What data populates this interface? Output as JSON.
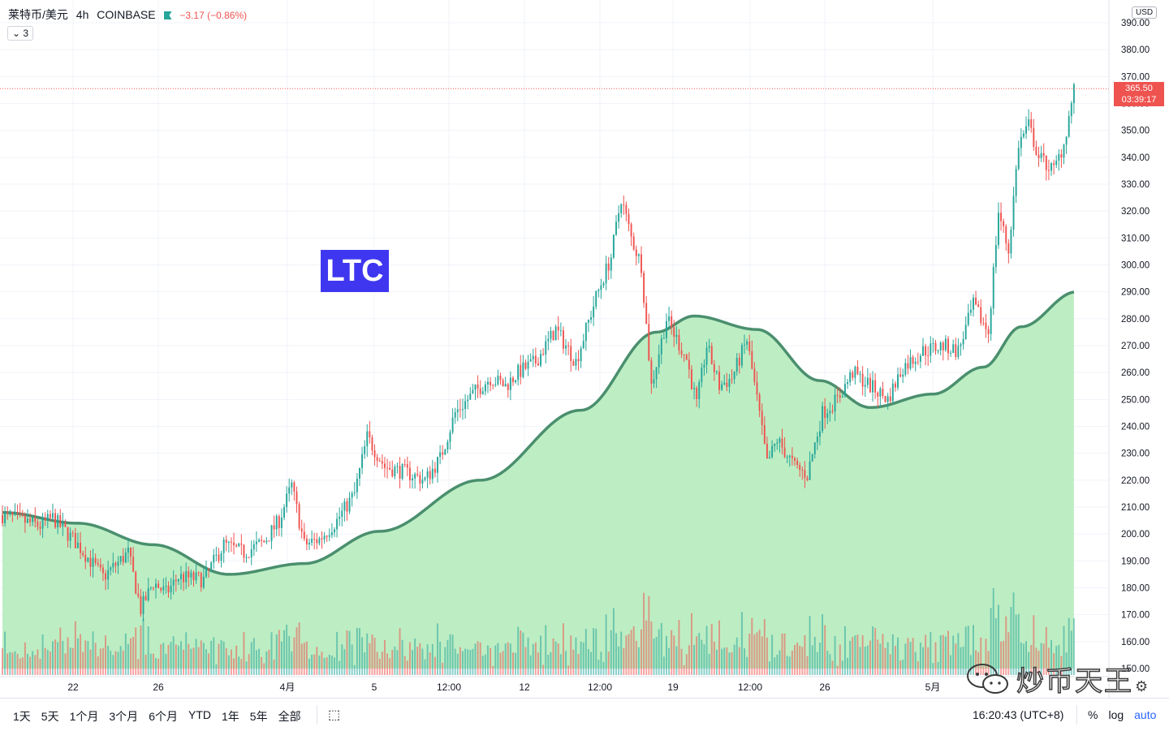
{
  "header": {
    "symbol": "莱特币/美元",
    "interval": "4h",
    "exchange": "COINBASE",
    "change": "−3.17 (−0.86%)",
    "indicator_count": "3"
  },
  "currency_button": "USD",
  "overlay_label": "LTC",
  "price_tag": {
    "price": "365.50",
    "countdown": "03:39:17"
  },
  "watermark_text": "炒币天王",
  "bottom_bar": {
    "ranges": [
      "1天",
      "5天",
      "1个月",
      "3个月",
      "6个月",
      "YTD",
      "1年",
      "5年",
      "全部"
    ],
    "time_readout": "16:20:43 (UTC+8)",
    "scale_buttons": {
      "percent": "%",
      "log": "log",
      "auto": "auto"
    }
  },
  "colors": {
    "up": "#26a69a",
    "down": "#ef5350",
    "band_fill": "#b9ecc0",
    "band_line": "#4a8f6e",
    "overlay_bg": "#3f37f0"
  },
  "chart_data": {
    "type": "candlestick",
    "yaxis": {
      "min": 150,
      "max": 390,
      "ticks": [
        "390.00",
        "380.00",
        "370.00",
        "360.00",
        "350.00",
        "340.00",
        "330.00",
        "320.00",
        "310.00",
        "300.00",
        "290.00",
        "280.00",
        "270.00",
        "260.00",
        "250.00",
        "240.00",
        "230.00",
        "220.00",
        "210.00",
        "200.00",
        "190.00",
        "180.00",
        "170.00",
        "160.00",
        "150.00"
      ]
    },
    "xaxis": {
      "ticks": [
        "22",
        "26",
        "4月",
        "5",
        "12:00",
        "12",
        "12:00",
        "19",
        "12:00",
        "26",
        "5月"
      ]
    },
    "last_price": 365.5,
    "anchors": [
      [
        0,
        207
      ],
      [
        15,
        203
      ],
      [
        20,
        206
      ],
      [
        30,
        196
      ],
      [
        40,
        184
      ],
      [
        50,
        193
      ],
      [
        55,
        172
      ],
      [
        60,
        182
      ],
      [
        65,
        178
      ],
      [
        70,
        184
      ],
      [
        80,
        183
      ],
      [
        88,
        196
      ],
      [
        96,
        193
      ],
      [
        104,
        197
      ],
      [
        110,
        205
      ],
      [
        115,
        218
      ],
      [
        120,
        196
      ],
      [
        126,
        198
      ],
      [
        133,
        205
      ],
      [
        140,
        215
      ],
      [
        145,
        236
      ],
      [
        152,
        225
      ],
      [
        160,
        223
      ],
      [
        168,
        220
      ],
      [
        174,
        228
      ],
      [
        180,
        245
      ],
      [
        188,
        253
      ],
      [
        194,
        258
      ],
      [
        200,
        255
      ],
      [
        205,
        260
      ],
      [
        212,
        264
      ],
      [
        220,
        276
      ],
      [
        228,
        264
      ],
      [
        236,
        288
      ],
      [
        242,
        303
      ],
      [
        246,
        325
      ],
      [
        250,
        310
      ],
      [
        254,
        300
      ],
      [
        258,
        255
      ],
      [
        264,
        280
      ],
      [
        272,
        265
      ],
      [
        276,
        248
      ],
      [
        280,
        270
      ],
      [
        285,
        255
      ],
      [
        290,
        258
      ],
      [
        296,
        272
      ],
      [
        300,
        250
      ],
      [
        304,
        226
      ],
      [
        308,
        235
      ],
      [
        315,
        225
      ],
      [
        320,
        222
      ],
      [
        326,
        245
      ],
      [
        332,
        250
      ],
      [
        338,
        260
      ],
      [
        345,
        255
      ],
      [
        352,
        250
      ],
      [
        358,
        262
      ],
      [
        366,
        268
      ],
      [
        374,
        270
      ],
      [
        380,
        268
      ],
      [
        386,
        285
      ],
      [
        392,
        275
      ],
      [
        396,
        320
      ],
      [
        400,
        305
      ],
      [
        404,
        345
      ],
      [
        408,
        352
      ],
      [
        412,
        340
      ],
      [
        418,
        335
      ],
      [
        422,
        345
      ],
      [
        426,
        365
      ]
    ],
    "trend_band": [
      [
        0,
        208
      ],
      [
        30,
        204
      ],
      [
        60,
        196
      ],
      [
        90,
        185
      ],
      [
        120,
        189
      ],
      [
        150,
        201
      ],
      [
        190,
        220
      ],
      [
        230,
        246
      ],
      [
        260,
        275
      ],
      [
        275,
        281
      ],
      [
        300,
        276
      ],
      [
        325,
        257
      ],
      [
        345,
        247
      ],
      [
        370,
        252
      ],
      [
        390,
        262
      ],
      [
        405,
        277
      ],
      [
        427,
        290
      ]
    ],
    "n_candles": 427
  }
}
